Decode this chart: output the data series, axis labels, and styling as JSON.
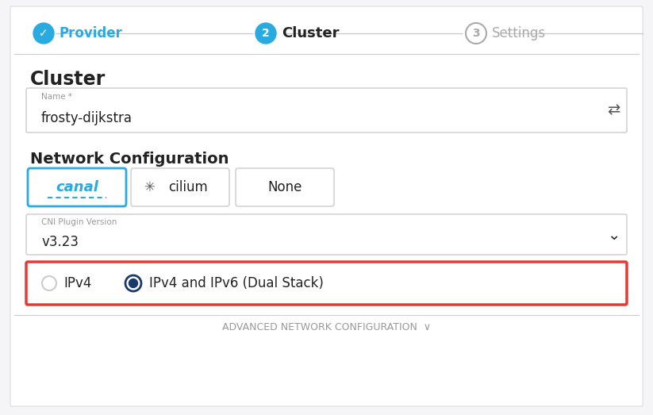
{
  "bg_color": "#f5f5f7",
  "panel_color": "#ffffff",
  "title_text": "Cluster",
  "step_labels": [
    "Provider",
    "Cluster",
    "Settings"
  ],
  "step_numbers": [
    "2",
    "3"
  ],
  "step_active": 1,
  "name_label": "Name *",
  "name_value": "frosty-dijkstra",
  "section_title": "Network Configuration",
  "cni_buttons": [
    "canal",
    "cilium",
    "None"
  ],
  "cni_active": 0,
  "cni_plugin_label": "CNI Plugin Version",
  "cni_plugin_value": "v3.23",
  "radio_options": [
    "IPv4",
    "IPv4 and IPv6 (Dual Stack)"
  ],
  "radio_selected": 1,
  "advanced_label": "ADVANCED NETWORK CONFIGURATION  ∨",
  "canal_color": "#29abe2",
  "step_active_color": "#29abe2",
  "step_inactive_color": "#aaaaaa",
  "border_color": "#cccccc",
  "highlight_border": "#e53935",
  "radio_selected_color": "#1a3a6b",
  "text_dark": "#222222",
  "text_medium": "#555555",
  "text_light": "#999999"
}
